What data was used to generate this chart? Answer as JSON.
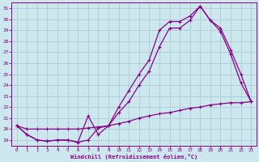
{
  "xlabel": "Windchill (Refroidissement éolien,°C)",
  "bg_color": "#cce8ee",
  "grid_color": "#aaccd4",
  "line_color": "#880088",
  "ylim": [
    18.5,
    31.5
  ],
  "xlim": [
    -0.5,
    23.5
  ],
  "yticks": [
    19,
    20,
    21,
    22,
    23,
    24,
    25,
    26,
    27,
    28,
    29,
    30,
    31
  ],
  "xticks": [
    0,
    1,
    2,
    3,
    4,
    5,
    6,
    7,
    8,
    9,
    10,
    11,
    12,
    13,
    14,
    15,
    16,
    17,
    18,
    19,
    20,
    21,
    22,
    23
  ],
  "line1_x": [
    0,
    1,
    2,
    3,
    4,
    5,
    6,
    7,
    8,
    9,
    10,
    11,
    12,
    13,
    14,
    15,
    16,
    17,
    18,
    19,
    20,
    21,
    22,
    23
  ],
  "line1_y": [
    20.3,
    19.5,
    19.0,
    18.9,
    19.0,
    19.0,
    18.8,
    19.0,
    20.1,
    20.3,
    21.5,
    22.5,
    24.0,
    25.3,
    27.5,
    29.2,
    29.2,
    29.9,
    31.2,
    29.9,
    28.9,
    26.8,
    24.2,
    22.5
  ],
  "line2_x": [
    0,
    1,
    2,
    3,
    4,
    5,
    6,
    7,
    8,
    9,
    10,
    11,
    12,
    13,
    14,
    15,
    16,
    17,
    18,
    19,
    20,
    21,
    22,
    23
  ],
  "line2_y": [
    20.3,
    19.5,
    19.0,
    18.9,
    19.0,
    19.0,
    18.8,
    21.2,
    19.5,
    20.3,
    22.0,
    23.5,
    25.0,
    26.3,
    29.0,
    29.8,
    29.8,
    30.3,
    31.2,
    29.9,
    29.2,
    27.2,
    25.0,
    22.5
  ],
  "line3_x": [
    0,
    1,
    2,
    3,
    4,
    5,
    6,
    7,
    8,
    9,
    10,
    11,
    12,
    13,
    14,
    15,
    16,
    17,
    18,
    19,
    20,
    21,
    22,
    23
  ],
  "line3_y": [
    20.3,
    20.0,
    20.0,
    20.0,
    20.0,
    20.0,
    20.0,
    20.1,
    20.2,
    20.3,
    20.5,
    20.7,
    21.0,
    21.2,
    21.4,
    21.5,
    21.7,
    21.9,
    22.0,
    22.2,
    22.3,
    22.4,
    22.4,
    22.5
  ]
}
